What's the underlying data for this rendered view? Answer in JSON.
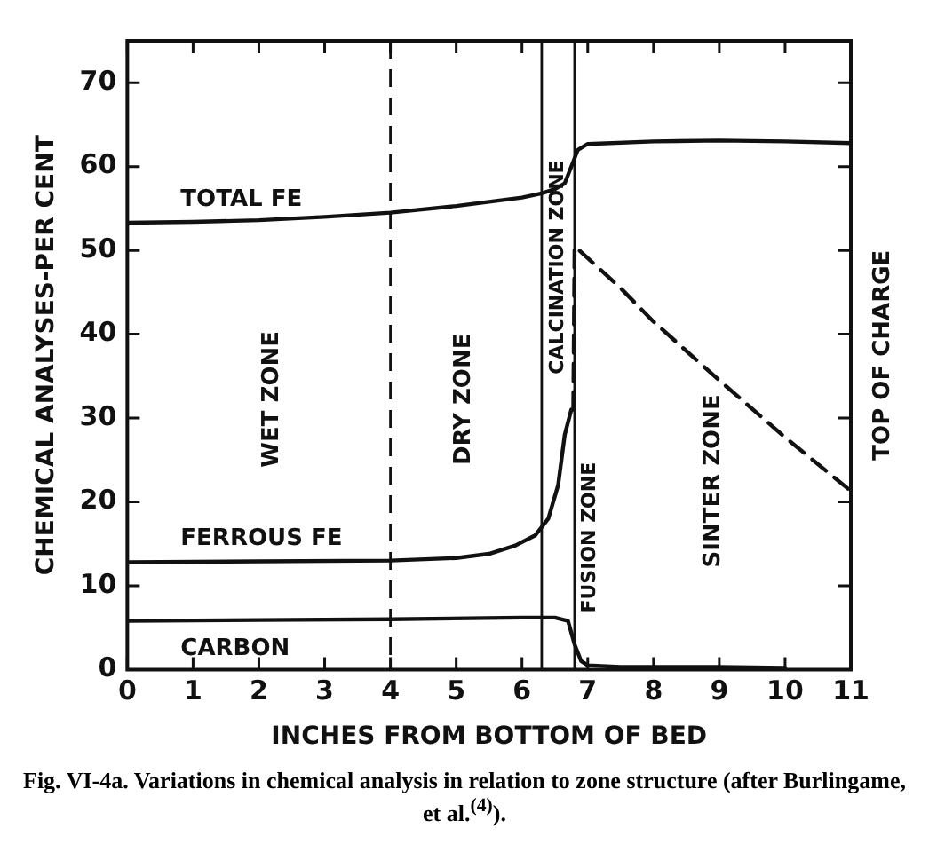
{
  "chart_data": {
    "type": "line",
    "xlabel": "INCHES FROM BOTTOM OF BED",
    "ylabel": "CHEMICAL ANALYSES-PER CENT",
    "xlim": [
      0,
      11
    ],
    "xticks": [
      0,
      1,
      2,
      3,
      4,
      5,
      6,
      7,
      8,
      9,
      10,
      11
    ],
    "ylim": [
      0,
      75
    ],
    "yticks": [
      0,
      10,
      20,
      30,
      40,
      50,
      60,
      70
    ],
    "grid": false,
    "legend": false,
    "marker": "none",
    "series": [
      {
        "name": "TOTAL FE",
        "color": "#111111",
        "x": [
          0,
          1,
          2,
          3,
          4,
          5,
          6,
          6.3,
          6.5,
          6.65,
          6.75,
          6.85,
          7.0,
          8,
          9,
          10,
          11
        ],
        "values": [
          53.3,
          53.4,
          53.6,
          54.0,
          54.5,
          55.3,
          56.3,
          56.8,
          57.3,
          58.0,
          60.0,
          62.0,
          62.7,
          63.0,
          63.1,
          63.0,
          62.8
        ]
      },
      {
        "name": "FERROUS FE",
        "color": "#111111",
        "x": [
          0,
          2,
          4,
          5,
          5.5,
          5.9,
          6.2,
          6.4,
          6.55,
          6.65,
          6.75
        ],
        "values": [
          12.8,
          12.9,
          13.0,
          13.3,
          13.8,
          14.8,
          16.0,
          18.0,
          22.0,
          28.0,
          31.0
        ]
      },
      {
        "color": "#111111",
        "line_style": "dashed",
        "x": [
          6.78,
          6.8,
          7.5,
          8,
          9,
          10,
          11
        ],
        "values": [
          31.0,
          50.5,
          45.5,
          41.5,
          34.5,
          27.7,
          21.3
        ]
      },
      {
        "name": "CARBON",
        "color": "#111111",
        "x": [
          0,
          2,
          4,
          6,
          6.5,
          6.7,
          6.8,
          6.9,
          7.0,
          7.5,
          9,
          10
        ],
        "values": [
          5.8,
          5.9,
          6.0,
          6.2,
          6.2,
          5.8,
          3.0,
          1.0,
          0.5,
          0.3,
          0.3,
          0.2
        ]
      }
    ],
    "ref_lines": [
      {
        "axis": "x",
        "value": 4,
        "line_style": "dashed",
        "color": "#111111"
      },
      {
        "axis": "x",
        "value": 6.3,
        "line_style": "solid",
        "color": "#111111"
      },
      {
        "axis": "x",
        "value": 6.8,
        "line_style": "solid",
        "color": "#111111"
      }
    ],
    "annotations": [
      "WET ZONE",
      "DRY ZONE",
      "CALCINATION ZONE",
      "FUSION ZONE",
      "SINTER ZONE",
      "TOP OF CHARGE",
      "Fig. VI-4a. Variations in chemical analysis in relation to zone structure (after Burlingame, et al.$^{(4)}$)."
    ]
  }
}
